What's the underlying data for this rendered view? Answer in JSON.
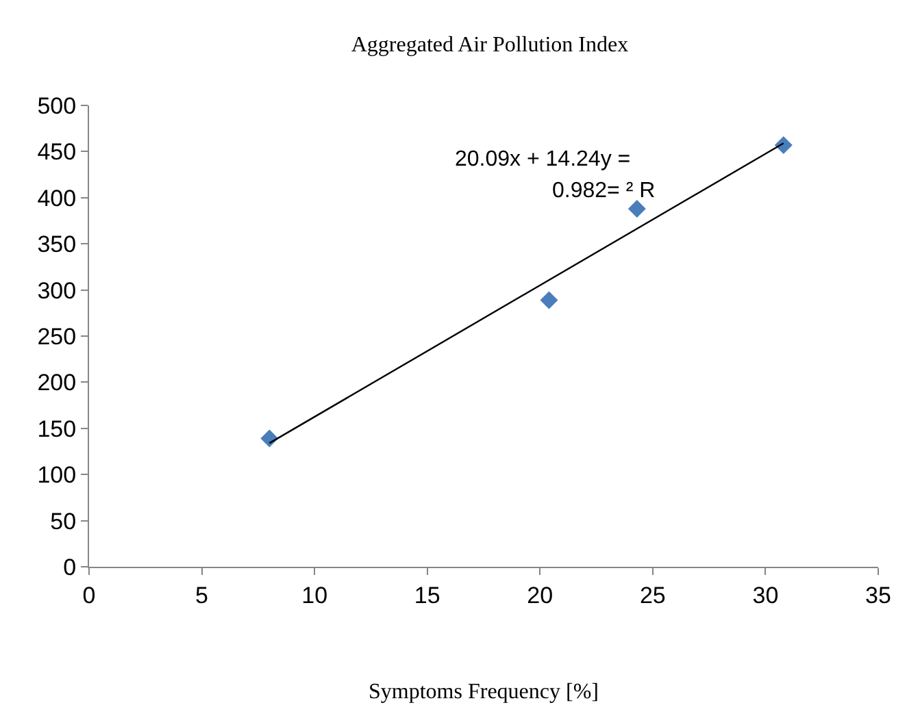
{
  "chart_data": {
    "type": "scatter",
    "title": "Aggregated Air Pollution Index",
    "xlabel": "Symptoms Frequency [%]",
    "x": [
      8.0,
      20.4,
      24.3,
      30.8
    ],
    "series": [
      {
        "color": "#4a7ebb",
        "values": [
          139,
          289,
          388,
          457
        ],
        "marker": "diamond"
      },
      {
        "type": "line",
        "color": "#000000",
        "x": [
          8.0,
          30.8
        ],
        "values": [
          134,
          459
        ]
      }
    ],
    "xlim": [
      0,
      35
    ],
    "xticks": [
      0,
      5,
      10,
      15,
      20,
      25,
      30,
      35
    ],
    "ylim": [
      0,
      500
    ],
    "yticks": [
      0,
      50,
      100,
      150,
      200,
      250,
      300,
      350,
      400,
      450,
      500
    ],
    "legend": false,
    "annotations": [
      "20.09x + 14.24y =",
      "0.982= ² R"
    ]
  }
}
